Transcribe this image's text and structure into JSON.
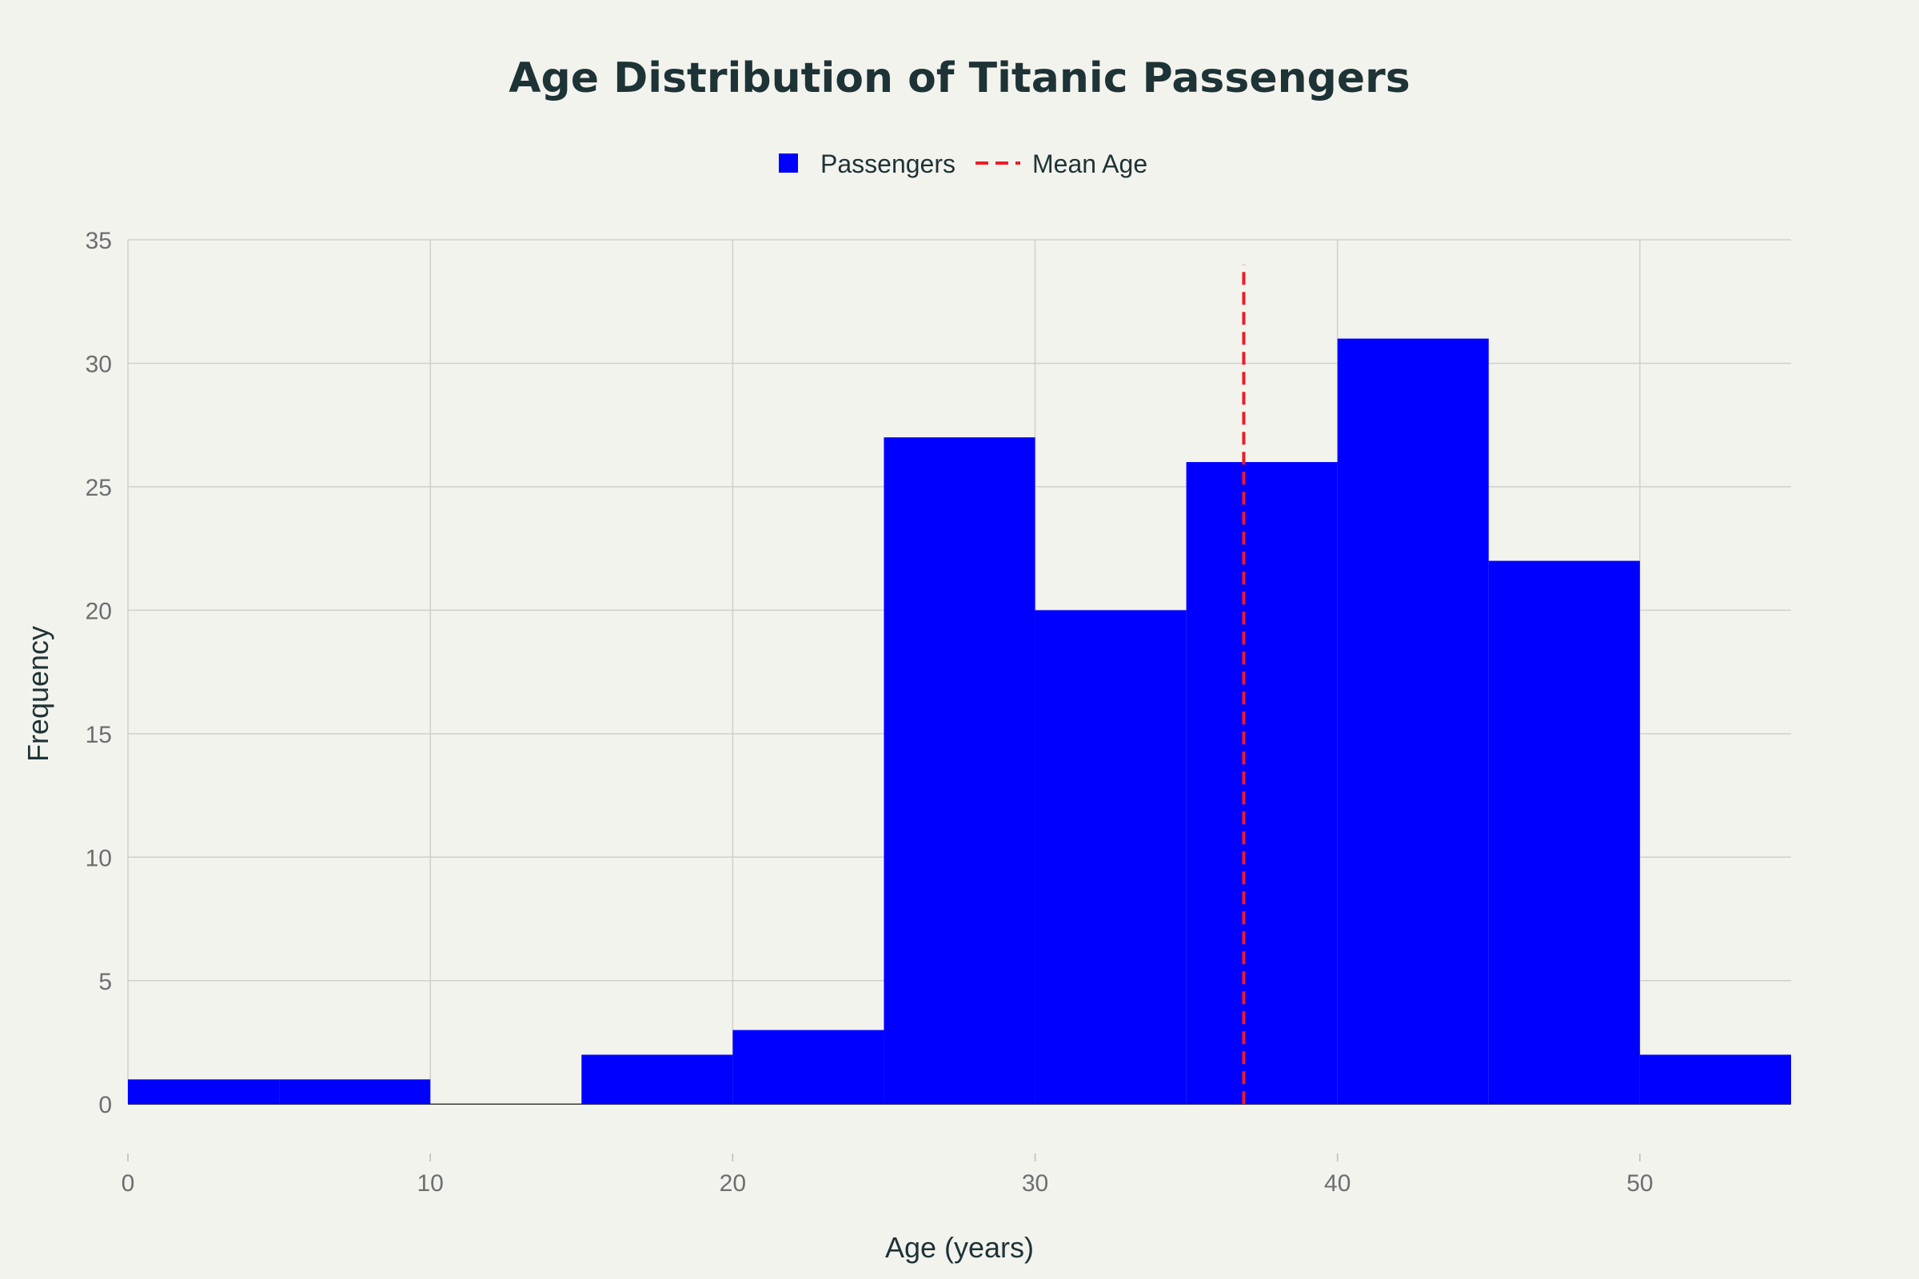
{
  "chart_data": {
    "type": "bar",
    "subtype": "histogram",
    "title": "Age Distribution of Titanic Passengers",
    "xlabel": "Age (years)",
    "ylabel": "Frequency",
    "xlim": [
      0,
      55
    ],
    "ylim": [
      -2,
      35
    ],
    "x_ticks": [
      0,
      10,
      20,
      30,
      40,
      50
    ],
    "y_ticks": [
      0,
      5,
      10,
      15,
      20,
      25,
      30,
      35
    ],
    "bin_width": 5,
    "bins": [
      {
        "start": 0,
        "end": 5,
        "count": 1
      },
      {
        "start": 5,
        "end": 10,
        "count": 1
      },
      {
        "start": 10,
        "end": 15,
        "count": 0
      },
      {
        "start": 15,
        "end": 20,
        "count": 2
      },
      {
        "start": 20,
        "end": 25,
        "count": 3
      },
      {
        "start": 25,
        "end": 30,
        "count": 27
      },
      {
        "start": 30,
        "end": 35,
        "count": 20
      },
      {
        "start": 35,
        "end": 40,
        "count": 26
      },
      {
        "start": 40,
        "end": 45,
        "count": 31
      },
      {
        "start": 45,
        "end": 50,
        "count": 22
      },
      {
        "start": 50,
        "end": 55,
        "count": 2
      }
    ],
    "series": [
      {
        "name": "Passengers",
        "color": "#0000ff"
      }
    ],
    "mean_line": {
      "name": "Mean Age",
      "x": 36.9,
      "y_top": 34,
      "color": "#ee1c25",
      "style": "dashed"
    },
    "grid": true,
    "legend_position": "top-center"
  }
}
